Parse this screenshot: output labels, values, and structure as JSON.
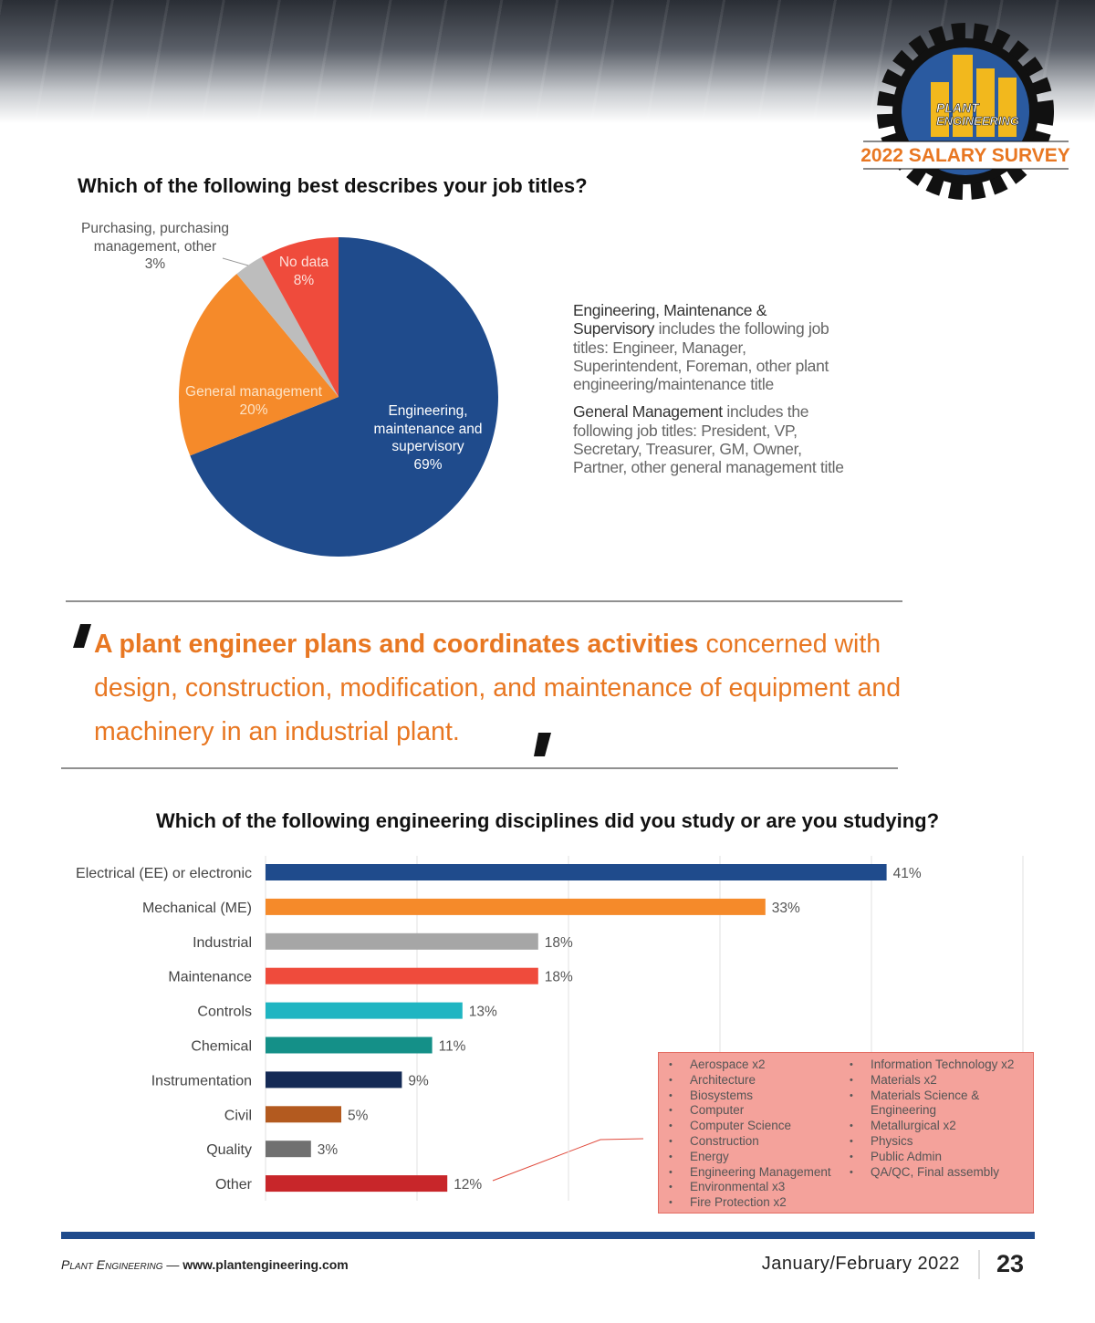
{
  "header": {
    "logo_top": "PLANT",
    "logo_bottom": "ENGINEERING",
    "badge": "2022 SALARY SURVEY"
  },
  "chart_data": [
    {
      "type": "pie",
      "title": "Which of the following best describes your job titles?",
      "categories": [
        "Engineering, maintenance and supervisory",
        "General management",
        "Purchasing, purchasing management, other",
        "No data"
      ],
      "values": [
        69,
        20,
        3,
        8
      ],
      "value_labels": [
        "69%",
        "20%",
        "3%",
        "8%"
      ],
      "colors": [
        "#1f4b8c",
        "#f58a2a",
        "#bdbdbd",
        "#ef4b3c"
      ]
    },
    {
      "type": "bar",
      "title": "Which of the following engineering disciplines did you study or are you studying?",
      "categories": [
        "Electrical (EE) or electronic",
        "Mechanical (ME)",
        "Industrial",
        "Maintenance",
        "Controls",
        "Chemical",
        "Instrumentation",
        "Civil",
        "Quality",
        "Other"
      ],
      "values": [
        41,
        33,
        18,
        18,
        13,
        11,
        9,
        5,
        3,
        12
      ],
      "value_labels": [
        "41%",
        "33%",
        "18%",
        "18%",
        "13%",
        "11%",
        "9%",
        "5%",
        "3%",
        "12%"
      ],
      "colors": [
        "#1f4b8c",
        "#f58a2a",
        "#a6a6a6",
        "#ef4b3c",
        "#1fb5c2",
        "#149088",
        "#142a55",
        "#b35a1f",
        "#707070",
        "#c8262a"
      ],
      "xlim": [
        0,
        50
      ],
      "xticks": [
        0,
        10,
        20,
        30,
        40,
        50
      ],
      "grid": true
    }
  ],
  "definitions": [
    {
      "term": "Engineering, Maintenance & Supervisory",
      "text": " includes the following job titles: Engineer, Manager, Superintendent, Foreman, other plant engineering/maintenance title"
    },
    {
      "term": "General Management",
      "text": " includes the following job titles: President, VP, Secretary, Treasurer, GM, Owner, Partner, other general management title"
    }
  ],
  "quote": {
    "emphasis": "A plant engineer plans and coordinates activities",
    "text": " concerned with design, construction, modification, and maintenance of equipment and machinery in an industrial plant."
  },
  "other_box": {
    "left": [
      "Aerospace x2",
      "Architecture",
      "Biosystems",
      "Computer",
      "Computer Science",
      "Construction",
      "Energy",
      "Engineering Management",
      "Environmental x3",
      "Fire Protection x2"
    ],
    "right": [
      "Information Technology x2",
      "Materials x2",
      "Materials Science & Engineering",
      "Metallurgical x2",
      "Physics",
      "Public Admin",
      "QA/QC, Final assembly"
    ]
  },
  "footer": {
    "publication": "Plant Engineering",
    "separator": "—",
    "url": "www.plantengineering.com",
    "issue": "January/February 2022",
    "page": "23"
  }
}
